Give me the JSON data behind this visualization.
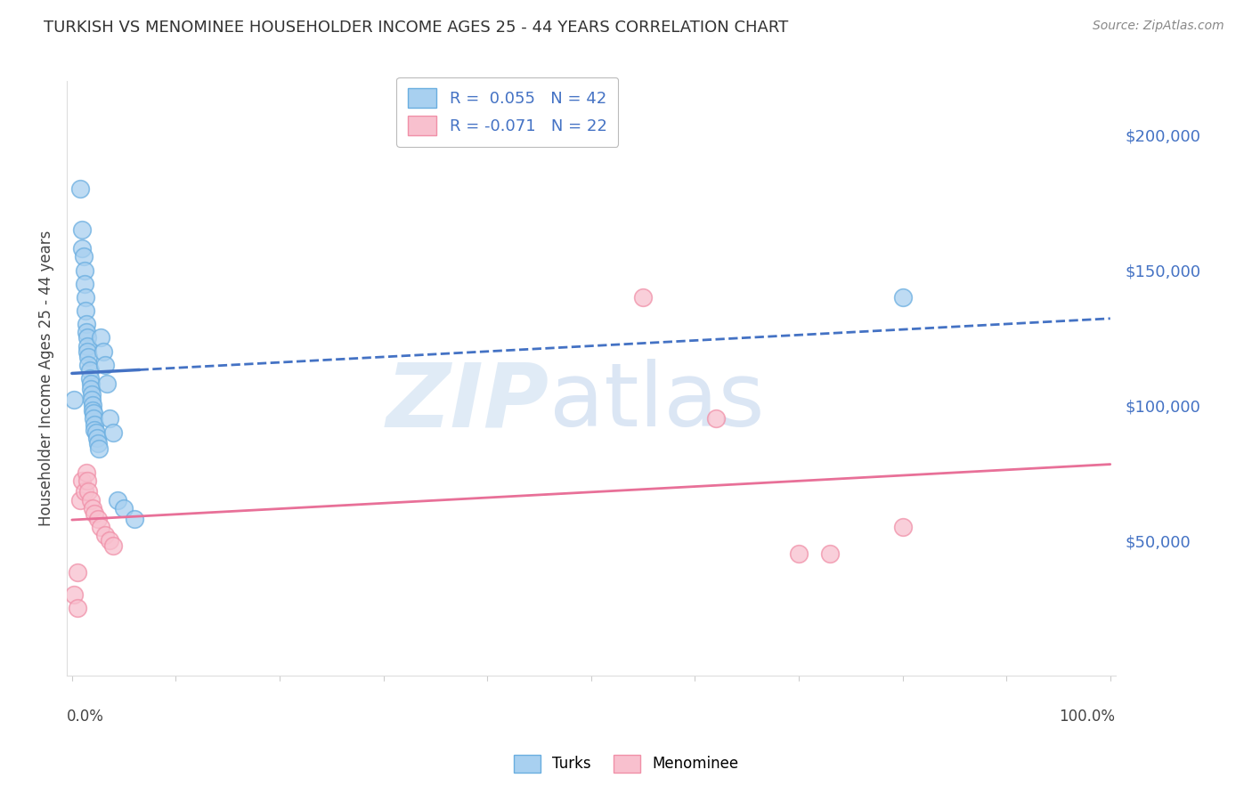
{
  "title": "TURKISH VS MENOMINEE HOUSEHOLDER INCOME AGES 25 - 44 YEARS CORRELATION CHART",
  "source": "Source: ZipAtlas.com",
  "ylabel": "Householder Income Ages 25 - 44 years",
  "ytick_labels": [
    "$50,000",
    "$100,000",
    "$150,000",
    "$200,000"
  ],
  "ytick_values": [
    50000,
    100000,
    150000,
    200000
  ],
  "ylim": [
    0,
    220000
  ],
  "xlim": [
    -0.005,
    1.005
  ],
  "blue_R": 0.055,
  "blue_N": 42,
  "pink_R": -0.071,
  "pink_N": 22,
  "blue_label": "Turks",
  "pink_label": "Menominee",
  "turks_x": [
    0.008,
    0.01,
    0.01,
    0.011,
    0.012,
    0.012,
    0.013,
    0.013,
    0.014,
    0.014,
    0.015,
    0.015,
    0.015,
    0.016,
    0.016,
    0.017,
    0.017,
    0.018,
    0.018,
    0.019,
    0.019,
    0.02,
    0.02,
    0.021,
    0.021,
    0.022,
    0.022,
    0.023,
    0.024,
    0.025,
    0.026,
    0.028,
    0.03,
    0.032,
    0.034,
    0.036,
    0.04,
    0.044,
    0.05,
    0.06,
    0.8,
    0.002
  ],
  "turks_y": [
    180000,
    165000,
    158000,
    155000,
    150000,
    145000,
    140000,
    135000,
    130000,
    127000,
    125000,
    122000,
    120000,
    118000,
    115000,
    113000,
    110000,
    108000,
    106000,
    104000,
    102000,
    100000,
    98000,
    97000,
    95000,
    93000,
    91000,
    90000,
    88000,
    86000,
    84000,
    125000,
    120000,
    115000,
    108000,
    95000,
    90000,
    65000,
    62000,
    58000,
    140000,
    102000
  ],
  "menominee_x": [
    0.002,
    0.005,
    0.008,
    0.01,
    0.012,
    0.014,
    0.015,
    0.016,
    0.018,
    0.02,
    0.022,
    0.025,
    0.028,
    0.032,
    0.036,
    0.04,
    0.55,
    0.62,
    0.7,
    0.73,
    0.8,
    0.005
  ],
  "menominee_y": [
    30000,
    38000,
    65000,
    72000,
    68000,
    75000,
    72000,
    68000,
    65000,
    62000,
    60000,
    58000,
    55000,
    52000,
    50000,
    48000,
    140000,
    95000,
    45000,
    45000,
    55000,
    25000
  ]
}
